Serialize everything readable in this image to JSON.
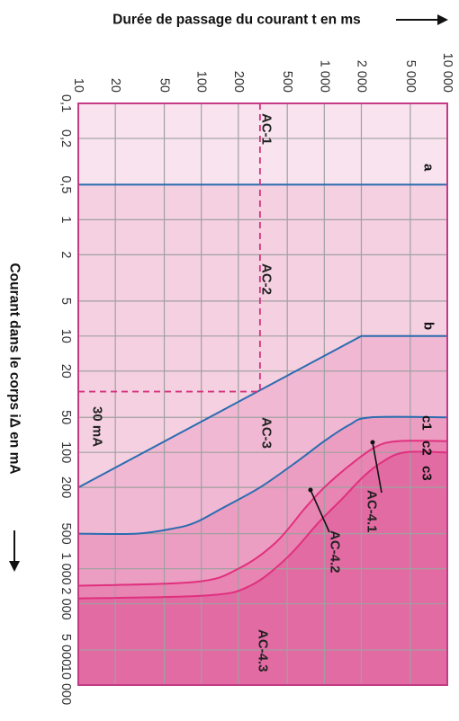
{
  "chart_data": {
    "type": "line",
    "orientation": "rotated-90deg-clockwise",
    "x_axis": {
      "label": "Courant dans le corps  iΔ en mA",
      "scale": "log",
      "range": [
        0.1,
        10000
      ],
      "ticks": [
        {
          "value": 0.1,
          "label": "0,1"
        },
        {
          "value": 0.2,
          "label": "0,2"
        },
        {
          "value": 0.5,
          "label": "0,5"
        },
        {
          "value": 1,
          "label": "1"
        },
        {
          "value": 2,
          "label": "2"
        },
        {
          "value": 5,
          "label": "5"
        },
        {
          "value": 10,
          "label": "10"
        },
        {
          "value": 20,
          "label": "20"
        },
        {
          "value": 50,
          "label": "50"
        },
        {
          "value": 100,
          "label": "100"
        },
        {
          "value": 200,
          "label": "200"
        },
        {
          "value": 500,
          "label": "500"
        },
        {
          "value": 1000,
          "label": "1 000"
        },
        {
          "value": 2000,
          "label": "2 000"
        },
        {
          "value": 5000,
          "label": "5 000"
        },
        {
          "value": 10000,
          "label": "10 000"
        }
      ]
    },
    "y_axis": {
      "label": "Durée de passage du courant t en ms",
      "scale": "log",
      "range": [
        10,
        10000
      ],
      "ticks": [
        {
          "value": 10,
          "label": "10"
        },
        {
          "value": 20,
          "label": "20"
        },
        {
          "value": 50,
          "label": "50"
        },
        {
          "value": 100,
          "label": "100"
        },
        {
          "value": 200,
          "label": "200"
        },
        {
          "value": 500,
          "label": "500"
        },
        {
          "value": 1000,
          "label": "1 000"
        },
        {
          "value": 2000,
          "label": "2 000"
        },
        {
          "value": 5000,
          "label": "5 000"
        },
        {
          "value": 10000,
          "label": "10 000"
        }
      ]
    },
    "grid": true,
    "series": [
      {
        "name": "a",
        "color": "#2b6cb0",
        "points": [
          [
            0.5,
            10
          ],
          [
            0.5,
            10000
          ]
        ]
      },
      {
        "name": "b",
        "color": "#2b6cb0",
        "points": [
          [
            200,
            10
          ],
          [
            10,
            2000
          ],
          [
            10,
            10000
          ]
        ]
      },
      {
        "name": "c1",
        "color": "#2b6cb0",
        "points": [
          [
            500,
            10
          ],
          [
            500,
            30
          ],
          [
            450,
            60
          ],
          [
            400,
            90
          ],
          [
            300,
            150
          ],
          [
            200,
            300
          ],
          [
            120,
            600
          ],
          [
            80,
            1000
          ],
          [
            58,
            1600
          ],
          [
            50,
            2400
          ],
          [
            50,
            10000
          ]
        ]
      },
      {
        "name": "c2",
        "color": "#e0307e",
        "points": [
          [
            1400,
            10
          ],
          [
            1300,
            90
          ],
          [
            1000,
            200
          ],
          [
            600,
            400
          ],
          [
            300,
            700
          ],
          [
            200,
            1000
          ],
          [
            130,
            1600
          ],
          [
            90,
            2600
          ],
          [
            80,
            4000
          ],
          [
            80,
            10000
          ]
        ]
      },
      {
        "name": "c3",
        "color": "#e0307e",
        "points": [
          [
            1800,
            10
          ],
          [
            1700,
            110
          ],
          [
            1400,
            250
          ],
          [
            800,
            500
          ],
          [
            400,
            900
          ],
          [
            250,
            1400
          ],
          [
            160,
            2100
          ],
          [
            120,
            3000
          ],
          [
            100,
            4500
          ],
          [
            100,
            10000
          ]
        ]
      }
    ],
    "reference_line_30mA": {
      "current_mA": 30,
      "duration_ms": 300
    },
    "zones": [
      "AC-1",
      "AC-2",
      "AC-3",
      "AC-4.1",
      "AC-4.2",
      "AC-4.3"
    ],
    "zone_colors": {
      "AC-1": "#f9e3ee",
      "AC-2": "#f5d0e1",
      "AC-3": "#f0b8d3",
      "AC-4.1": "#ec9ec2",
      "AC-4.2": "#e885b3",
      "AC-4.3": "#e26ba3"
    },
    "labels": {
      "ac1": "AC-1",
      "ac2": "AC-2",
      "ac3": "AC-3",
      "ac41": "AC-4.1",
      "ac42": "AC-4.2",
      "ac43": "AC-4.3",
      "a": "a",
      "b": "b",
      "c1": "c1",
      "c2": "c2",
      "c3": "c3",
      "ma30": "30 mA"
    },
    "colors": {
      "frame": "#c43a86",
      "grid": "#a0a0a0",
      "blue": "#2b6cb0",
      "pink": "#e0307e",
      "dash": "#d6337f"
    }
  }
}
